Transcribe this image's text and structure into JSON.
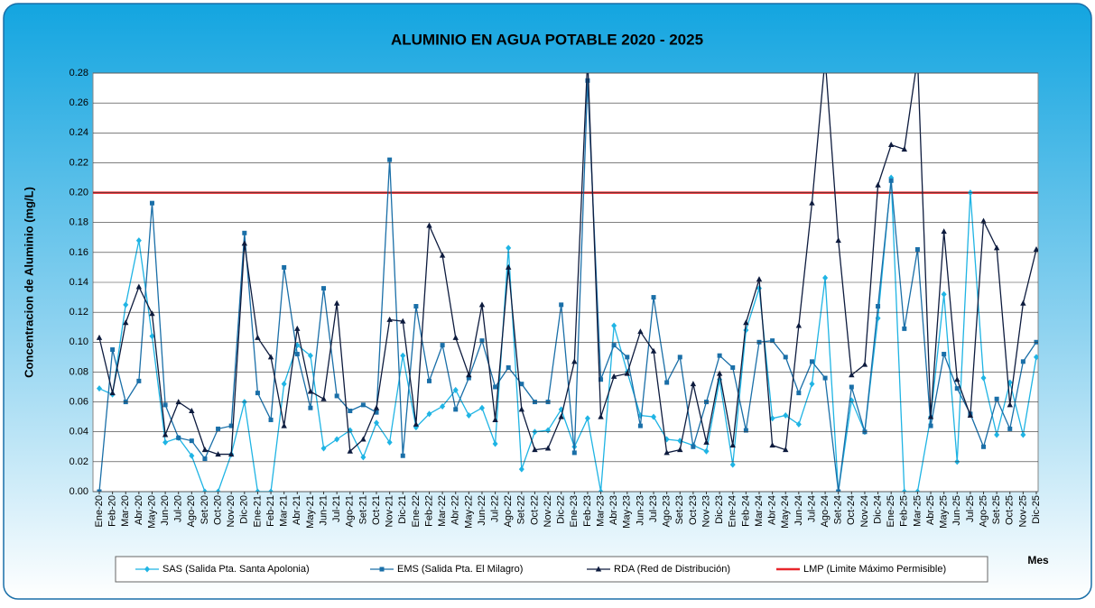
{
  "chart_data": {
    "type": "line",
    "title": "ALUMINIO EN AGUA POTABLE  2020 - 2025",
    "y_label": "Concentracion de Aluminio (mg/L)",
    "x_label": "Mes",
    "categories": [
      "Ene-20",
      "Feb-20",
      "Mar-20",
      "Abr-20",
      "May-20",
      "Jun-20",
      "Jul-20",
      "Ago-20",
      "Set-20",
      "Oct-20",
      "Nov-20",
      "Dic-20",
      "Ene-21",
      "Feb-21",
      "Mar-21",
      "Abr-21",
      "May-21",
      "Jun-21",
      "Jul-21",
      "Ago-21",
      "Set-21",
      "Oct-21",
      "Nov-21",
      "Dic-21",
      "Ene-22",
      "Feb-22",
      "Mar-22",
      "Abr-22",
      "May-22",
      "Jun-22",
      "Jul-22",
      "Ago-22",
      "Set-22",
      "Oct-22",
      "Nov-22",
      "Dic-22",
      "Ene-23",
      "Feb-23",
      "Mar-23",
      "Abr-23",
      "May-23",
      "Jun-23",
      "Jul-23",
      "Ago-23",
      "Set-23",
      "Oct-23",
      "Nov-23",
      "Dic-23",
      "Ene-24",
      "Feb-24",
      "Mar-24",
      "Abr-24",
      "May-24",
      "Jun-24",
      "Jul-24",
      "Ago-24",
      "Set-24",
      "Oct-24",
      "Nov-24",
      "Dic-24",
      "Ene-25",
      "Feb-25",
      "Mar-25",
      "Abr-25",
      "May-25",
      "Jun-25",
      "Jul-25",
      "Ago-25",
      "Set-25",
      "Oct-25",
      "Nov-25",
      "Dic-25"
    ],
    "series": [
      {
        "name": "SAS (Salida Pta. Santa Apolonia)",
        "color": "#1fb4e4",
        "marker": "diamond",
        "values": [
          0.069,
          0.065,
          0.125,
          0.168,
          0.104,
          0.033,
          0.036,
          0.024,
          0,
          0,
          0.025,
          0.06,
          0,
          0,
          0.072,
          0.098,
          0.091,
          0.029,
          0.035,
          0.041,
          0.023,
          0.046,
          0.033,
          0.091,
          0.043,
          0.052,
          0.057,
          0.068,
          0.051,
          0.056,
          0.032,
          0.163,
          0.015,
          0.04,
          0.041,
          0.055,
          0.03,
          0.049,
          0,
          0.111,
          0.08,
          0.051,
          0.05,
          0.035,
          0.034,
          0.031,
          0.027,
          0.075,
          0.018,
          0.108,
          0.136,
          0.049,
          0.051,
          0.045,
          0.072,
          0.143,
          0,
          0.061,
          0.04,
          0.116,
          0.21,
          0,
          0,
          0.05,
          0.132,
          0.02,
          0.2,
          0.076,
          0.038,
          0.073,
          0.038,
          0.09
        ]
      },
      {
        "name": "EMS (Salida Pta. El Milagro)",
        "color": "#1a6fa8",
        "marker": "square",
        "values": [
          0,
          0.095,
          0.06,
          0.074,
          0.193,
          0.058,
          0.036,
          0.034,
          0.022,
          0.042,
          0.044,
          0.173,
          0.066,
          0.048,
          0.15,
          0.092,
          0.056,
          0.136,
          0.064,
          0.054,
          0.058,
          0.053,
          0.222,
          0.024,
          0.124,
          0.074,
          0.098,
          0.055,
          0.076,
          0.101,
          0.07,
          0.083,
          0.072,
          0.06,
          0.06,
          0.125,
          0.026,
          0.275,
          0.075,
          0.098,
          0.09,
          0.044,
          0.13,
          0.073,
          0.09,
          0.03,
          0.06,
          0.091,
          0.083,
          0.041,
          0.1,
          0.101,
          0.09,
          0.066,
          0.087,
          0.076,
          0,
          0.07,
          0.04,
          0.124,
          0.208,
          0.109,
          0.162,
          0.044,
          0.092,
          0.069,
          0.052,
          0.03,
          0.062,
          0.042,
          0.087,
          0.1
        ]
      },
      {
        "name": "RDA (Red de Distribución)",
        "color": "#0d1b3e",
        "marker": "triangle",
        "values": [
          0.103,
          0.066,
          0.113,
          0.137,
          0.119,
          0.038,
          0.06,
          0.054,
          0.028,
          0.025,
          0.025,
          0.166,
          0.103,
          0.09,
          0.044,
          0.109,
          0.067,
          0.062,
          0.126,
          0.027,
          0.035,
          0.056,
          0.115,
          0.114,
          0.045,
          0.178,
          0.158,
          0.103,
          0.078,
          0.125,
          0.048,
          0.15,
          0.055,
          0.028,
          0.029,
          0.05,
          0.087,
          0.29,
          0.05,
          0.077,
          0.079,
          0.107,
          0.094,
          0.026,
          0.028,
          0.072,
          0.033,
          0.079,
          0.031,
          0.113,
          0.142,
          0.031,
          0.028,
          0.111,
          0.193,
          0.29,
          0.168,
          0.078,
          0.085,
          0.205,
          0.232,
          0.229,
          0.29,
          0.05,
          0.174,
          0.075,
          0.051,
          0.181,
          0.163,
          0.058,
          0.126,
          0.162
        ]
      }
    ],
    "reference_line": {
      "name": "LMP (Limite Máximo Permisible)",
      "value": 0.2,
      "color": "#e8262b"
    },
    "ylim": [
      0,
      0.28
    ],
    "yticks": [
      {
        "value": 0,
        "label": "0.00"
      },
      0.02,
      0.04,
      0.06,
      0.08,
      {
        "value": 0.1,
        "label": "0.10"
      },
      0.12,
      0.14,
      0.16,
      0.18,
      {
        "value": 0.2,
        "label": "0.20"
      },
      0.22,
      0.24,
      0.26,
      0.28
    ],
    "grid": true
  }
}
